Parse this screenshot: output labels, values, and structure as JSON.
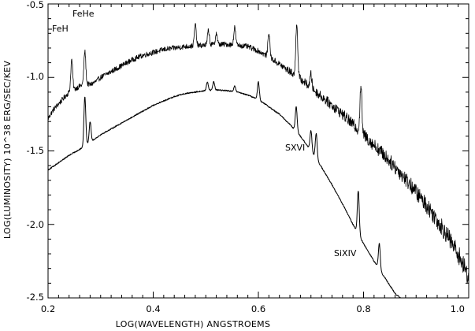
{
  "chart_data": {
    "type": "line",
    "title": "",
    "xlabel": "LOG(WAVELENGTH) ANGSTROEMS",
    "ylabel": "LOG(LUMINOSITY) 10^38 ERG/SEC/KEV",
    "xlim": [
      0.2,
      1.0
    ],
    "ylim": [
      -2.5,
      -0.5
    ],
    "x_ticks": [
      "0.2",
      "0.4",
      "0.6",
      "0.8",
      "1.0"
    ],
    "y_ticks": [
      "-0.5",
      "-1.0",
      "-1.5",
      "-2.0",
      "-2.5"
    ],
    "grid": false,
    "series": [
      {
        "points": [
          [
            0.2,
            -1.28
          ],
          [
            0.21,
            -1.22
          ],
          [
            0.22,
            -1.18
          ],
          [
            0.23,
            -1.14
          ],
          [
            0.24,
            -1.1
          ],
          [
            0.25,
            -1.08
          ],
          [
            0.26,
            -1.06
          ],
          [
            0.27,
            -1.04
          ],
          [
            0.28,
            -1.05
          ],
          [
            0.29,
            -1.03
          ],
          [
            0.3,
            -1.0
          ],
          [
            0.32,
            -0.96
          ],
          [
            0.34,
            -0.92
          ],
          [
            0.36,
            -0.88
          ],
          [
            0.38,
            -0.85
          ],
          [
            0.4,
            -0.83
          ],
          [
            0.42,
            -0.81
          ],
          [
            0.44,
            -0.8
          ],
          [
            0.46,
            -0.79
          ],
          [
            0.48,
            -0.785
          ],
          [
            0.5,
            -0.78
          ],
          [
            0.52,
            -0.775
          ],
          [
            0.54,
            -0.775
          ],
          [
            0.56,
            -0.78
          ],
          [
            0.58,
            -0.79
          ],
          [
            0.6,
            -0.82
          ],
          [
            0.62,
            -0.86
          ],
          [
            0.64,
            -0.91
          ],
          [
            0.66,
            -0.96
          ],
          [
            0.68,
            -1.01
          ],
          [
            0.7,
            -1.07
          ],
          [
            0.72,
            -1.13
          ],
          [
            0.74,
            -1.19
          ],
          [
            0.76,
            -1.25
          ],
          [
            0.78,
            -1.32
          ],
          [
            0.8,
            -1.39
          ],
          [
            0.82,
            -1.46
          ],
          [
            0.84,
            -1.53
          ],
          [
            0.86,
            -1.61
          ],
          [
            0.88,
            -1.69
          ],
          [
            0.9,
            -1.78
          ],
          [
            0.92,
            -1.87
          ],
          [
            0.94,
            -1.97
          ],
          [
            0.96,
            -2.08
          ],
          [
            0.98,
            -2.2
          ],
          [
            1.0,
            -2.36
          ]
        ],
        "lines": [
          [
            0.245,
            -0.88
          ],
          [
            0.27,
            -0.82
          ],
          [
            0.48,
            -0.64
          ],
          [
            0.505,
            -0.68
          ],
          [
            0.52,
            -0.7
          ],
          [
            0.555,
            -0.66
          ],
          [
            0.62,
            -0.69
          ],
          [
            0.673,
            -0.62
          ],
          [
            0.7,
            -0.98
          ],
          [
            0.795,
            -1.05
          ]
        ],
        "noise": 0.03
      },
      {
        "points": [
          [
            0.2,
            -1.63
          ],
          [
            0.22,
            -1.58
          ],
          [
            0.24,
            -1.53
          ],
          [
            0.26,
            -1.49
          ],
          [
            0.28,
            -1.44
          ],
          [
            0.3,
            -1.39
          ],
          [
            0.32,
            -1.35
          ],
          [
            0.34,
            -1.31
          ],
          [
            0.36,
            -1.27
          ],
          [
            0.38,
            -1.23
          ],
          [
            0.4,
            -1.19
          ],
          [
            0.42,
            -1.16
          ],
          [
            0.44,
            -1.13
          ],
          [
            0.46,
            -1.11
          ],
          [
            0.48,
            -1.1
          ],
          [
            0.5,
            -1.09
          ],
          [
            0.52,
            -1.085
          ],
          [
            0.54,
            -1.09
          ],
          [
            0.56,
            -1.1
          ],
          [
            0.58,
            -1.12
          ],
          [
            0.6,
            -1.15
          ],
          [
            0.62,
            -1.2
          ],
          [
            0.64,
            -1.25
          ],
          [
            0.66,
            -1.32
          ],
          [
            0.68,
            -1.4
          ],
          [
            0.7,
            -1.5
          ],
          [
            0.72,
            -1.61
          ],
          [
            0.74,
            -1.73
          ],
          [
            0.76,
            -1.86
          ],
          [
            0.78,
            -2.0
          ],
          [
            0.8,
            -2.13
          ],
          [
            0.82,
            -2.25
          ],
          [
            0.84,
            -2.36
          ],
          [
            0.86,
            -2.47
          ],
          [
            0.87,
            -2.5
          ]
        ],
        "lines": [
          [
            0.27,
            -1.13
          ],
          [
            0.28,
            -1.3
          ],
          [
            0.503,
            -1.03
          ],
          [
            0.515,
            -1.03
          ],
          [
            0.555,
            -1.06
          ],
          [
            0.6,
            -1.03
          ],
          [
            0.672,
            -1.2
          ],
          [
            0.7,
            -1.36
          ],
          [
            0.71,
            -1.38
          ],
          [
            0.79,
            -1.77
          ],
          [
            0.83,
            -2.13
          ]
        ],
        "noise": 0.004
      }
    ],
    "annotations": [
      "FeHe",
      "FeH",
      "SXVI",
      "SiXIV"
    ]
  }
}
